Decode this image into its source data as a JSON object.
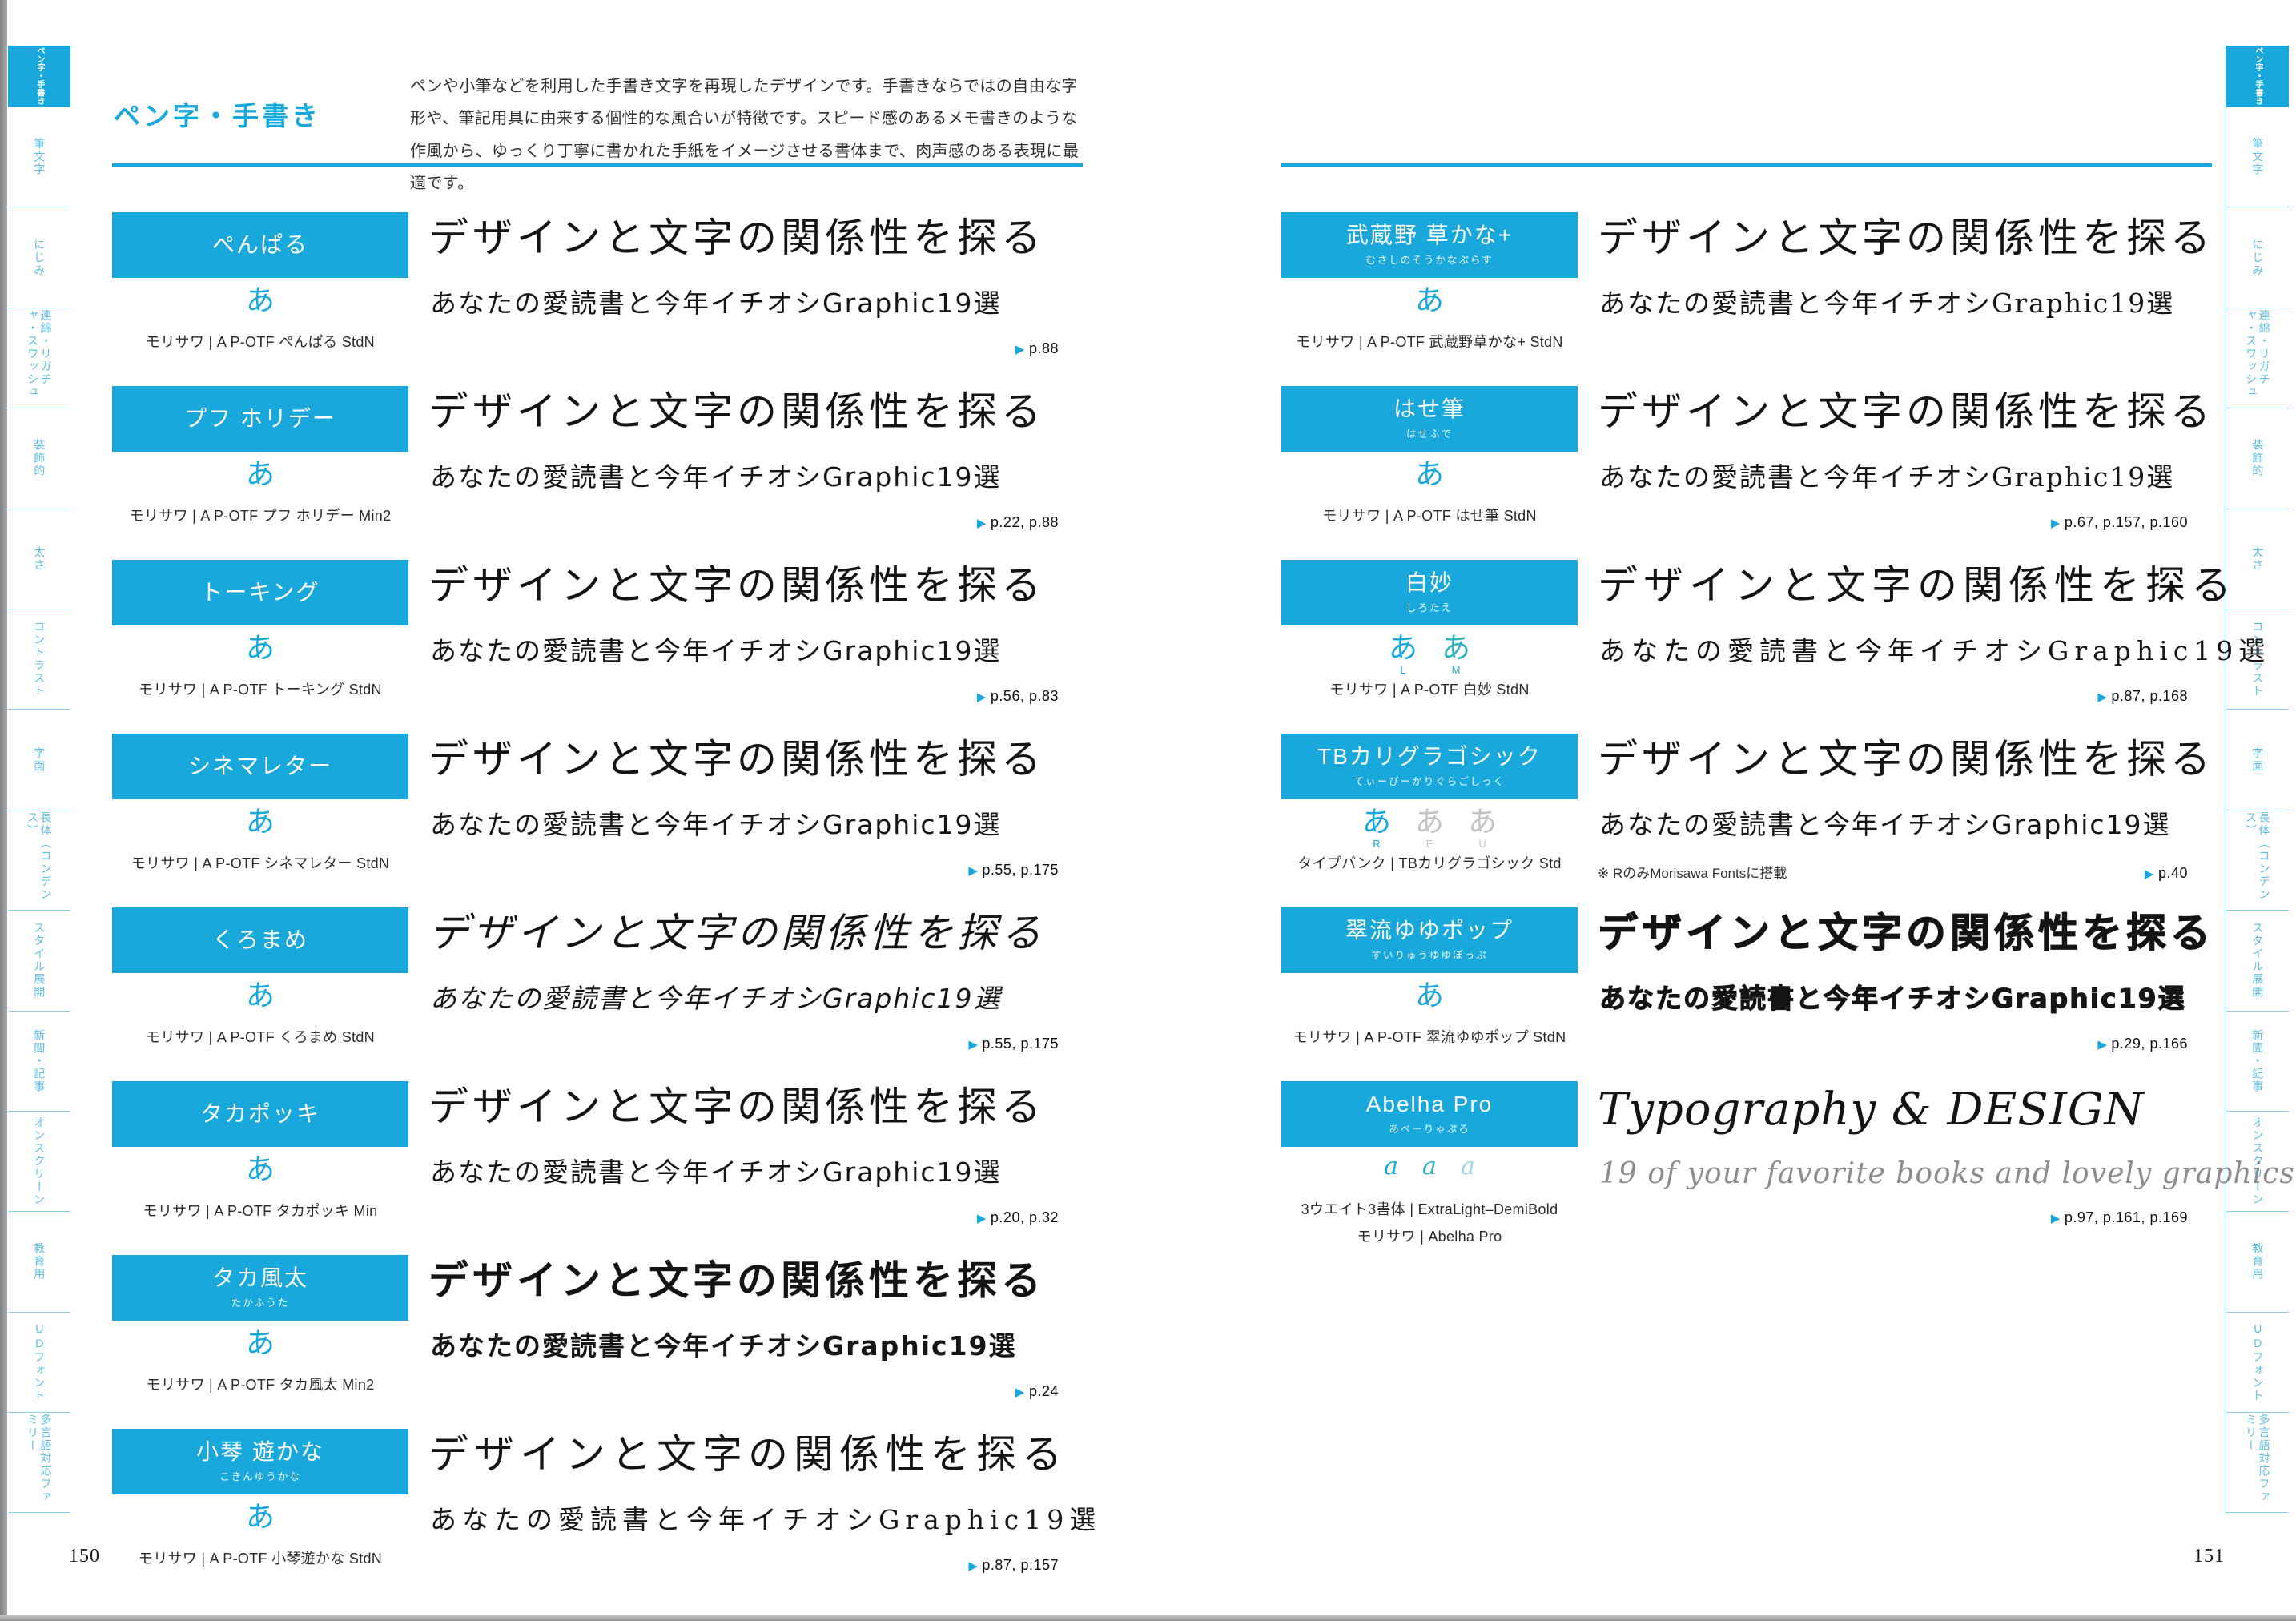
{
  "ui": {
    "arrow": "▶"
  },
  "colors": {
    "accent": "#18a8db",
    "tab_text": "#5fbee2",
    "sample_teal": "#2fb2bd",
    "sample_muted": "#c4c4c4"
  },
  "header": {
    "title": "ペン字・手書き",
    "description": "ペンや小筆などを利用した手書き文字を再現したデザインです。手書きならではの自由な字形や、筆記用具に由来する個性的な風合いが特徴です。スピード感のあるメモ書きのような作風から、ゆっくり丁寧に書かれた手紙をイメージさせる書体まで、肉声感のある表現に最適です。"
  },
  "pages": {
    "left_number": "150",
    "right_number": "151"
  },
  "sidebar": {
    "items": [
      {
        "label": "ペン字・手書き",
        "active": true
      },
      {
        "label": "筆文字",
        "active": false
      },
      {
        "label": "にじみ",
        "active": false
      },
      {
        "label": "連綿・リガチャ・スワッシュ",
        "active": false
      },
      {
        "label": "装飾的",
        "active": false
      },
      {
        "label": "太さ",
        "active": false
      },
      {
        "label": "コントラスト",
        "active": false
      },
      {
        "label": "字面",
        "active": false
      },
      {
        "label": "長体（コンデンス）",
        "active": false
      },
      {
        "label": "スタイル展開",
        "active": false
      },
      {
        "label": "新聞・記事",
        "active": false
      },
      {
        "label": "オンスクリーン",
        "active": false
      },
      {
        "label": "教育用",
        "active": false
      },
      {
        "label": "UDフォント",
        "active": false
      },
      {
        "label": "多言語対応ファミリー",
        "active": false
      }
    ]
  },
  "entries_left": [
    {
      "name": "ぺんぱる",
      "reading": "",
      "style": "sans",
      "samples": [
        {
          "char": "あ",
          "label": "",
          "tone": "accent"
        }
      ],
      "vendor": "モリサワ | A P-OTF ぺんぱる StdN",
      "vendor2": "",
      "line1": "デザインと文字の関係性を探る",
      "line2": "あなたの愛読書と今年イチオシGraphic19選",
      "note": "",
      "refs": "p.88"
    },
    {
      "name": "プフ ホリデー",
      "reading": "",
      "style": "sans",
      "samples": [
        {
          "char": "あ",
          "label": "",
          "tone": "accent"
        }
      ],
      "vendor": "モリサワ | A P-OTF プフ ホリデー Min2",
      "vendor2": "",
      "line1": "デザインと文字の関係性を探る",
      "line2": "あなたの愛読書と今年イチオシGraphic19選",
      "note": "",
      "refs": "p.22, p.88"
    },
    {
      "name": "トーキング",
      "reading": "",
      "style": "sans",
      "samples": [
        {
          "char": "あ",
          "label": "",
          "tone": "accent"
        }
      ],
      "vendor": "モリサワ | A P-OTF トーキング StdN",
      "vendor2": "",
      "line1": "デザインと文字の関係性を探る",
      "line2": "あなたの愛読書と今年イチオシGraphic19選",
      "note": "",
      "refs": "p.56, p.83"
    },
    {
      "name": "シネマレター",
      "reading": "",
      "style": "sans",
      "samples": [
        {
          "char": "あ",
          "label": "",
          "tone": "accent"
        }
      ],
      "vendor": "モリサワ | A P-OTF シネマレター StdN",
      "vendor2": "",
      "line1": "デザインと文字の関係性を探る",
      "line2": "あなたの愛読書と今年イチオシGraphic19選",
      "note": "",
      "refs": "p.55, p.175"
    },
    {
      "name": "くろまめ",
      "reading": "",
      "style": "sans-oblique",
      "samples": [
        {
          "char": "あ",
          "label": "",
          "tone": "accent"
        }
      ],
      "vendor": "モリサワ | A P-OTF くろまめ StdN",
      "vendor2": "",
      "line1": "デザインと文字の関係性を探る",
      "line2": "あなたの愛読書と今年イチオシGraphic19選",
      "note": "",
      "refs": "p.55, p.175"
    },
    {
      "name": "タカポッキ",
      "reading": "",
      "style": "sans",
      "samples": [
        {
          "char": "あ",
          "label": "",
          "tone": "accent"
        }
      ],
      "vendor": "モリサワ | A P-OTF タカポッキ Min",
      "vendor2": "",
      "line1": "デザインと文字の関係性を探る",
      "line2": "あなたの愛読書と今年イチオシGraphic19選",
      "note": "",
      "refs": "p.20, p.32"
    },
    {
      "name": "タカ風太",
      "reading": "たかふうた",
      "style": "sans-bold",
      "samples": [
        {
          "char": "あ",
          "label": "",
          "tone": "accent"
        }
      ],
      "vendor": "モリサワ | A P-OTF タカ風太 Min2",
      "vendor2": "",
      "line1": "デザインと文字の関係性を探る",
      "line2": "あなたの愛読書と今年イチオシGraphic19選",
      "note": "",
      "refs": "p.24"
    },
    {
      "name": "小琴 遊かな",
      "reading": "こきんゆうかな",
      "style": "serif-light",
      "samples": [
        {
          "char": "あ",
          "label": "",
          "tone": "accent"
        }
      ],
      "vendor": "モリサワ | A P-OTF 小琴遊かな StdN",
      "vendor2": "",
      "line1": "デザインと文字の関係性を探る",
      "line2": "あなたの愛読書と今年イチオシGraphic19選",
      "note": "",
      "refs": "p.87, p.157"
    }
  ],
  "entries_right": [
    {
      "name": "武蔵野 草かな+",
      "reading": "むさしのそうかなぷらす",
      "style": "serif",
      "samples": [
        {
          "char": "あ",
          "label": "",
          "tone": "accent"
        }
      ],
      "vendor": "モリサワ | A P-OTF 武蔵野草かな+ StdN",
      "vendor2": "",
      "line1": "デザインと文字の関係性を探る",
      "line2": "あなたの愛読書と今年イチオシGraphic19選",
      "note": "",
      "refs": ""
    },
    {
      "name": "はせ筆",
      "reading": "はせふで",
      "style": "serif",
      "samples": [
        {
          "char": "あ",
          "label": "",
          "tone": "accent"
        }
      ],
      "vendor": "モリサワ | A P-OTF はせ筆 StdN",
      "vendor2": "",
      "line1": "デザインと文字の関係性を探る",
      "line2": "あなたの愛読書と今年イチオシGraphic19選",
      "note": "",
      "refs": "p.67, p.157, p.160"
    },
    {
      "name": "白妙",
      "reading": "しろたえ",
      "style": "serif-light",
      "samples": [
        {
          "char": "あ",
          "label": "L",
          "tone": "accent"
        },
        {
          "char": "あ",
          "label": "M",
          "tone": "teal"
        }
      ],
      "vendor": "モリサワ | A P-OTF 白妙 StdN",
      "vendor2": "",
      "line1": "デザインと文字の関係性を探る",
      "line2": "あなたの愛読書と今年イチオシGraphic19選",
      "note": "",
      "refs": "p.87, p.168"
    },
    {
      "name": "TBカリグラゴシック",
      "reading": "てぃーびーかりぐらごしっく",
      "style": "sans",
      "samples": [
        {
          "char": "あ",
          "label": "R",
          "tone": "accent"
        },
        {
          "char": "あ",
          "label": "E",
          "tone": "muted"
        },
        {
          "char": "あ",
          "label": "U",
          "tone": "muted"
        }
      ],
      "vendor": "タイプバンク | TBカリグラゴシック Std",
      "vendor2": "",
      "line1": "デザインと文字の関係性を探る",
      "line2": "あなたの愛読書と今年イチオシGraphic19選",
      "note": "※ RのみMorisawa Fontsに搭載",
      "refs": "p.40"
    },
    {
      "name": "翠流ゆゆポップ",
      "reading": "すいりゅうゆゆぽっぷ",
      "style": "sans-black",
      "samples": [
        {
          "char": "あ",
          "label": "",
          "tone": "accent"
        }
      ],
      "vendor": "モリサワ | A P-OTF 翠流ゆゆポップ StdN",
      "vendor2": "",
      "line1": "デザインと文字の関係性を探る",
      "line2": "あなたの愛読書と今年イチオシGraphic19選",
      "note": "",
      "refs": "p.29, p.166"
    },
    {
      "name": "Abelha Pro",
      "reading": "あべーりゃぷろ",
      "style": "serif-italic",
      "samples": [
        {
          "char": "a",
          "label": "",
          "tone": "accent"
        },
        {
          "char": "a",
          "label": "",
          "tone": "teal"
        },
        {
          "char": "a",
          "label": "",
          "tone": "pale"
        }
      ],
      "vendor": "3ウエイト3書体 | ExtraLight–DemiBold",
      "vendor2": "モリサワ | Abelha Pro",
      "line1": "Typography & DESIGN",
      "line2": "19 of your favorite books and lovely graphics.",
      "note": "",
      "refs": "p.97, p.161, p.169"
    }
  ]
}
